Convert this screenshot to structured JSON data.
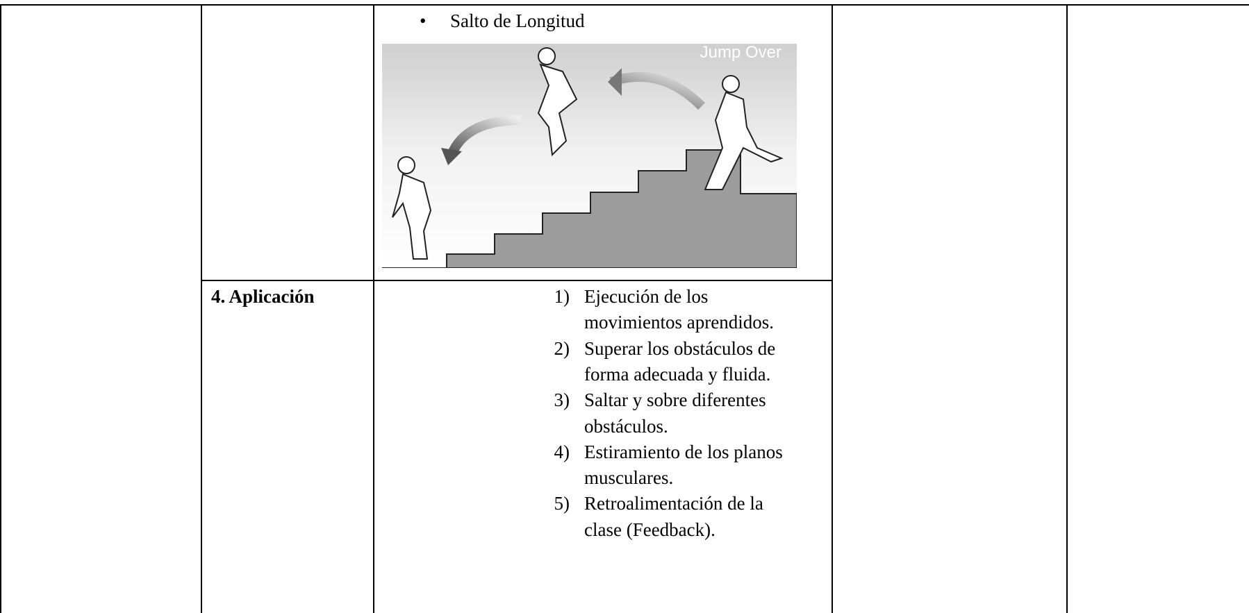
{
  "table": {
    "image_block": {
      "bullet_text": "Salto de Longitud",
      "image_caption": "Jump Over"
    },
    "row_label": "4. Aplicación",
    "items": [
      {
        "number": "1)",
        "lines": [
          "Ejecución de los",
          "movimientos aprendidos."
        ]
      },
      {
        "number": "2)",
        "lines": [
          "Superar los obstáculos de",
          "forma adecuada y fluida."
        ]
      },
      {
        "number": "3)",
        "lines": [
          "Saltar y sobre diferentes",
          "obstáculos."
        ]
      },
      {
        "number": "4)",
        "lines": [
          "Estiramiento de los planos",
          "musculares."
        ]
      },
      {
        "number": "5)",
        "lines": [
          "Retroalimentación de la",
          "clase (Feedback)."
        ]
      }
    ]
  }
}
